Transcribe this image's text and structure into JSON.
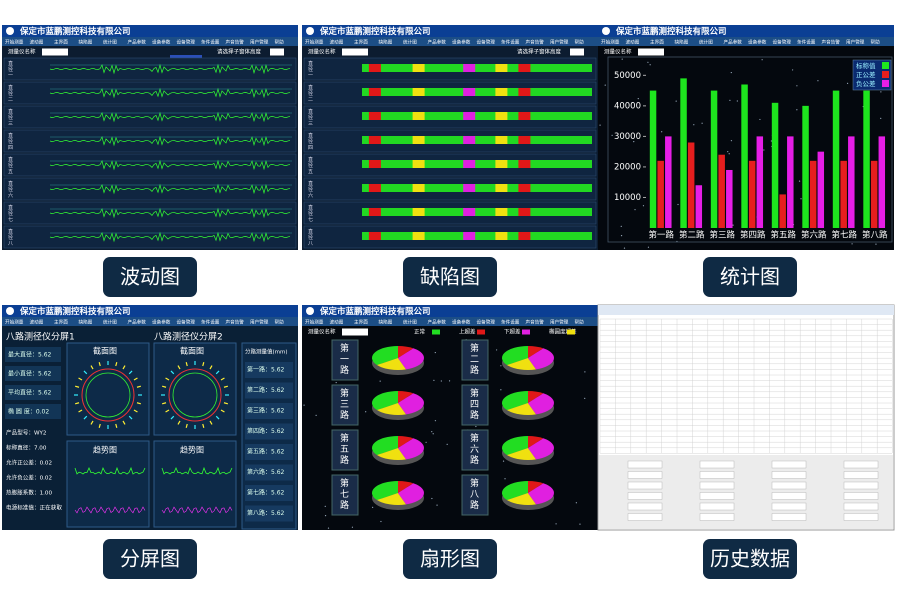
{
  "company": "保定市蓝鹏测控科技有限公司",
  "menu": [
    "开始测量",
    "波动图",
    "主界面",
    "缺陷图",
    "统计图",
    "产品参数",
    "设备参数",
    "设备管理",
    "条件设置",
    "声音告警",
    "用户管理",
    "帮助"
  ],
  "captions": [
    "波动图",
    "缺陷图",
    "统计图",
    "分屏图",
    "扇形图",
    "历史数据"
  ],
  "toolbar": {
    "name_label": "测量仪名称",
    "height_label": "请选择子窗体高度"
  },
  "wave_rows": [
    "直径一",
    "直径二",
    "直径三",
    "直径四",
    "直径五",
    "直径六",
    "直径七",
    "直径八"
  ],
  "chart_data": {
    "type": "bar",
    "categories": [
      "第一路",
      "第二路",
      "第三路",
      "第四路",
      "第五路",
      "第六路",
      "第七路",
      "第八路"
    ],
    "series": [
      {
        "name": "标称值",
        "color": "#1ee61e",
        "values": [
          45000,
          49000,
          45000,
          47000,
          41000,
          40000,
          45000,
          45000
        ]
      },
      {
        "name": "正公差",
        "color": "#e61e1e",
        "values": [
          22000,
          28000,
          24000,
          22000,
          11000,
          22000,
          22000,
          22000
        ]
      },
      {
        "name": "负公差",
        "color": "#e61ee6",
        "values": [
          30000,
          14000,
          19000,
          30000,
          30000,
          25000,
          30000,
          30000
        ]
      }
    ],
    "ylim": [
      0,
      56000
    ],
    "yticks": [
      10000,
      20000,
      30000,
      40000,
      50000
    ]
  },
  "split": {
    "title1": "八路测径仪分屏1",
    "title2": "八路测径仪分屏2",
    "section": "截面图",
    "trend": "趋势图",
    "stats": [
      "最大直径：5.62",
      "最小直径：5.62",
      "平均直径：5.62",
      "椭 圆 度：0.02"
    ],
    "params": [
      "产品型号：WY2",
      "标称直径：7.00",
      "允许正公差：0.02",
      "允许负公差：0.02",
      "热膨胀系数：1.00",
      "电源标准值：正在获取"
    ],
    "side_title": "分路测量值(mm)",
    "side": [
      "第一路：5.62",
      "第二路：5.62",
      "第三路：5.62",
      "第四路：5.62",
      "第五路：5.62",
      "第六路：5.62",
      "第七路：5.62",
      "第八路：5.62"
    ]
  },
  "pie": {
    "legend": [
      "正常",
      "上超差",
      "下超差",
      "椭圆度超差"
    ],
    "labels": [
      "第一路",
      "第二路",
      "第三路",
      "第四路",
      "第五路",
      "第六路",
      "第七路",
      "第八路"
    ]
  }
}
